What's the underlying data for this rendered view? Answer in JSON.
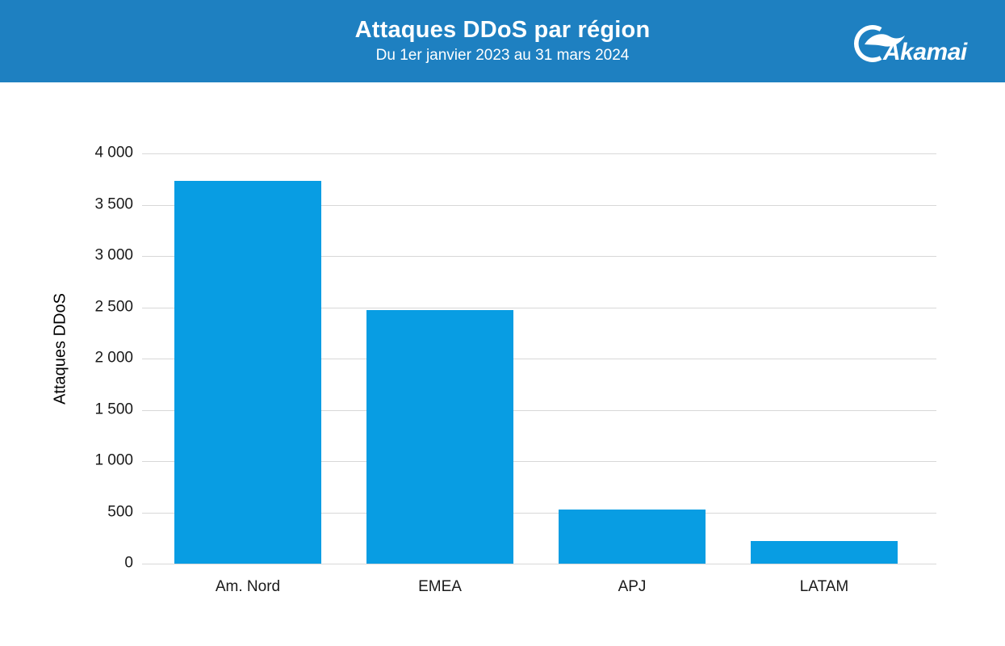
{
  "header": {
    "title": "Attaques DDoS par région",
    "subtitle": "Du 1er janvier 2023 au 31 mars 2024",
    "background_color": "#1E80C1",
    "text_color": "#FFFFFF",
    "logo": {
      "brand": "Akamai",
      "icon": "akamai-swoosh-icon",
      "color": "#FFFFFF"
    }
  },
  "chart_data": {
    "type": "bar",
    "title": "Attaques DDoS par région",
    "subtitle": "Du 1er janvier 2023 au 31 mars 2024",
    "categories": [
      "Am. Nord",
      "EMEA",
      "APJ",
      "LATAM"
    ],
    "values": [
      3735,
      2475,
      530,
      220
    ],
    "xlabel": "",
    "ylabel": "Attaques DDoS",
    "ylim": [
      0,
      4000
    ],
    "ytick_step": 500,
    "yticks": [
      {
        "value": 0,
        "label": "0"
      },
      {
        "value": 500,
        "label": "500"
      },
      {
        "value": 1000,
        "label": "1 000"
      },
      {
        "value": 1500,
        "label": "1 500"
      },
      {
        "value": 2000,
        "label": "2 000"
      },
      {
        "value": 2500,
        "label": "2 500"
      },
      {
        "value": 3000,
        "label": "3 000"
      },
      {
        "value": 3500,
        "label": "3 500"
      },
      {
        "value": 4000,
        "label": "4 000"
      }
    ],
    "grid": true,
    "legend": false,
    "bar_color": "#089DE3",
    "gridline_color": "#D8D8D8",
    "axis_text_color": "#1A1A1A"
  }
}
